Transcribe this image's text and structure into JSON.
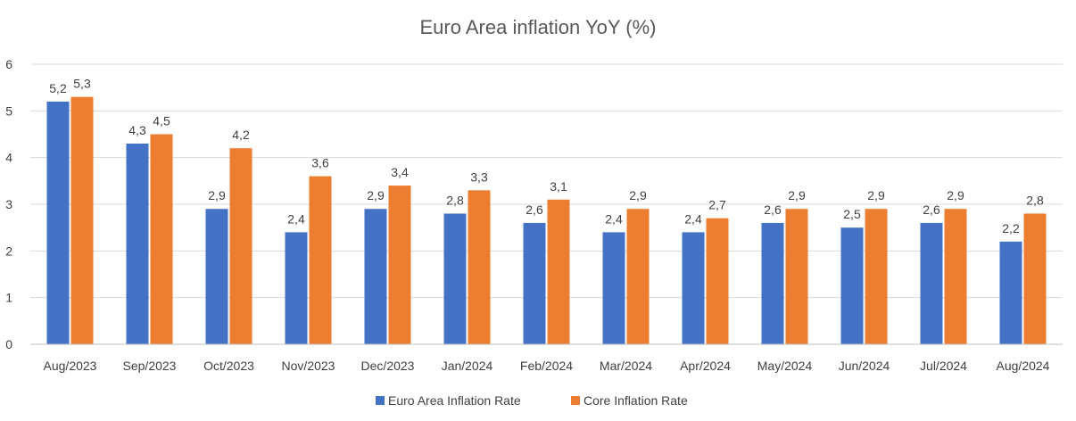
{
  "chart_data": {
    "type": "bar",
    "title": "Euro Area inflation YoY (%)",
    "xlabel": "",
    "ylabel": "",
    "ylim": [
      0,
      6
    ],
    "yticks": [
      "0",
      "1",
      "2",
      "3",
      "4",
      "5",
      "6"
    ],
    "grid": true,
    "legend_position": "bottom",
    "categories": [
      "Aug/2023",
      "Sep/2023",
      "Oct/2023",
      "Nov/2023",
      "Dec/2023",
      "Jan/2024",
      "Feb/2024",
      "Mar/2024",
      "Apr/2024",
      "May/2024",
      "Jun/2024",
      "Jul/2024",
      "Aug/2024"
    ],
    "series": [
      {
        "name": "Euro Area Inflation Rate",
        "color": "#4472C4",
        "values": [
          5.2,
          4.3,
          2.9,
          2.4,
          2.9,
          2.8,
          2.6,
          2.4,
          2.4,
          2.6,
          2.5,
          2.6,
          2.2
        ],
        "labels": [
          "5,2",
          "4,3",
          "2,9",
          "2,4",
          "2,9",
          "2,8",
          "2,6",
          "2,4",
          "2,4",
          "2,6",
          "2,5",
          "2,6",
          "2,2"
        ]
      },
      {
        "name": "Core Inflation Rate",
        "color": "#ED7D31",
        "values": [
          5.3,
          4.5,
          4.2,
          3.6,
          3.4,
          3.3,
          3.1,
          2.9,
          2.7,
          2.9,
          2.9,
          2.9,
          2.8
        ],
        "labels": [
          "5,3",
          "4,5",
          "4,2",
          "3,6",
          "3,4",
          "3,3",
          "3,1",
          "2,9",
          "2,7",
          "2,9",
          "2,9",
          "2,9",
          "2,8"
        ]
      }
    ]
  }
}
